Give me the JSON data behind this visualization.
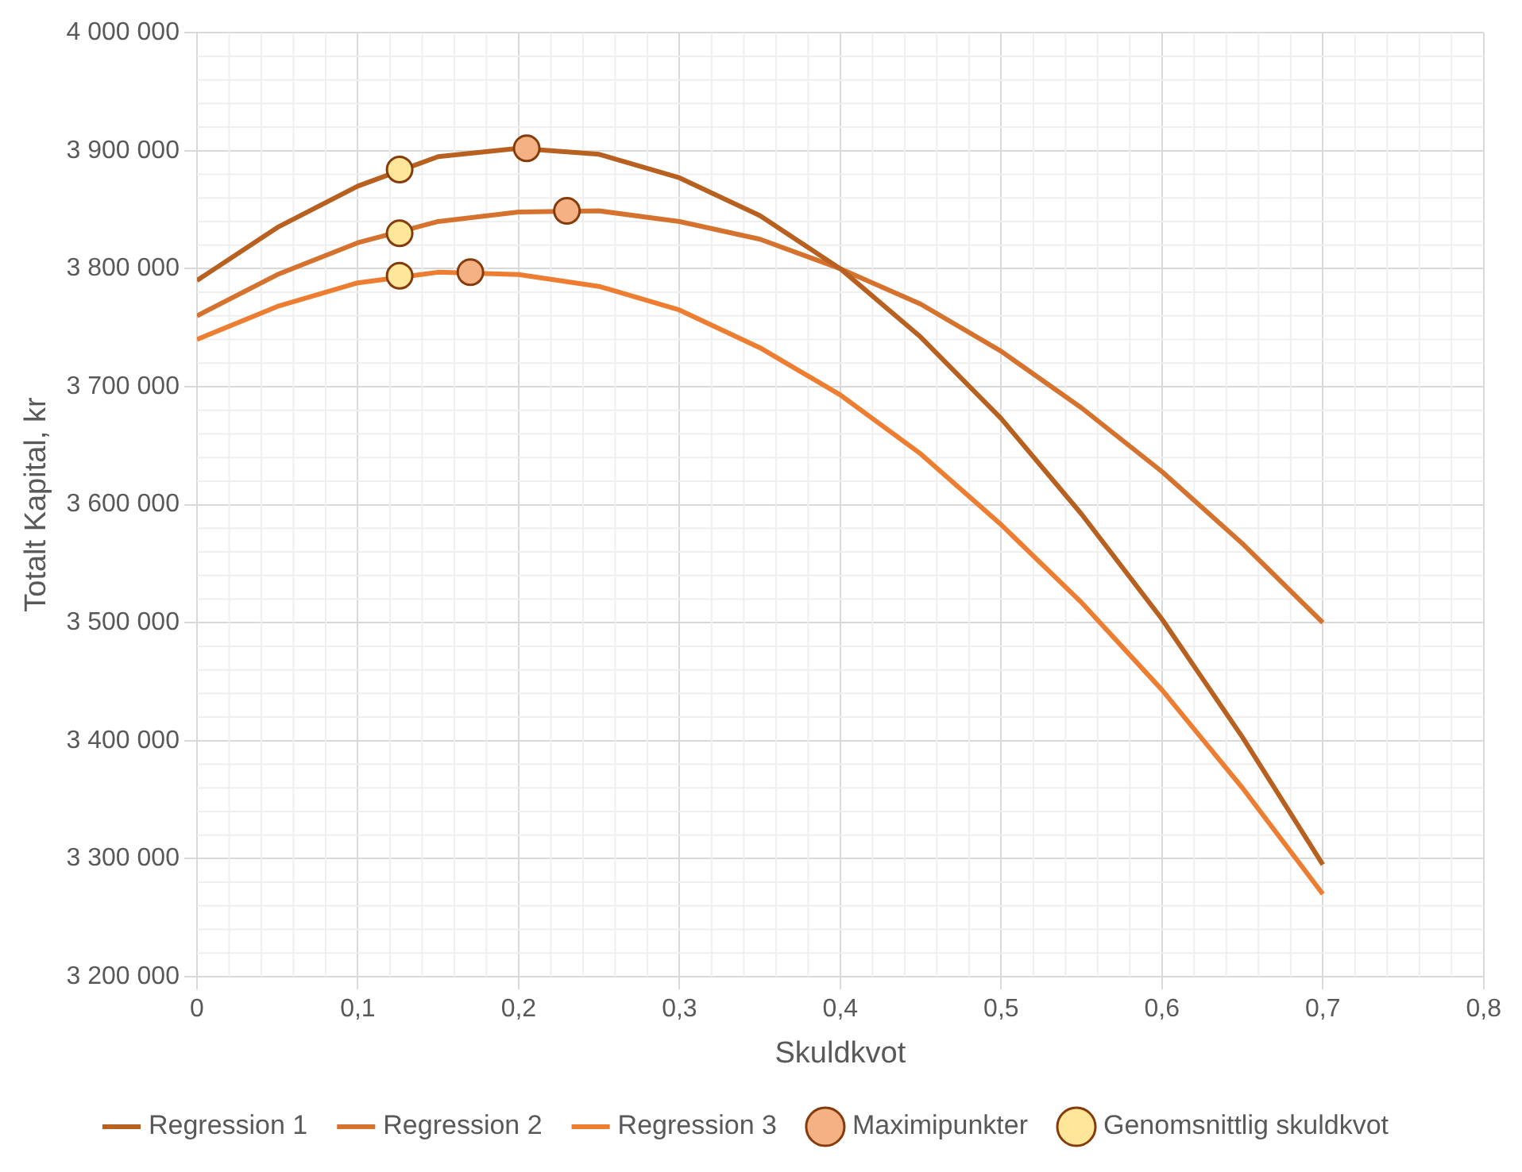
{
  "chart_data": {
    "type": "line",
    "xlabel": "Skuldkvot",
    "ylabel": "Totalt Kapital, kr",
    "x": [
      0,
      0.05,
      0.1,
      0.15,
      0.2,
      0.25,
      0.3,
      0.35,
      0.4,
      0.45,
      0.5,
      0.55,
      0.6,
      0.65,
      0.7
    ],
    "series": [
      {
        "name": "Regression 1",
        "color": "#b8601f",
        "values": [
          3790000,
          3835000,
          3870000,
          3895000,
          3902000,
          3897000,
          3877000,
          3845000,
          3800000,
          3742000,
          3673000,
          3592000,
          3503000,
          3403000,
          3295000
        ]
      },
      {
        "name": "Regression 2",
        "color": "#d4722e",
        "values": [
          3760000,
          3795000,
          3822000,
          3840000,
          3848000,
          3849000,
          3840000,
          3825000,
          3800000,
          3770000,
          3730000,
          3682000,
          3628000,
          3567000,
          3500000
        ]
      },
      {
        "name": "Regression 3",
        "color": "#ed7d31",
        "values": [
          3740000,
          3768000,
          3788000,
          3797000,
          3795000,
          3785000,
          3765000,
          3733000,
          3693000,
          3643000,
          3583000,
          3517000,
          3443000,
          3360000,
          3270000
        ]
      },
      {
        "name": "Maximipunkter",
        "type": "scatter",
        "marker": "circle",
        "color": "#f4b183",
        "x": [
          0.205,
          0.23,
          0.17
        ],
        "values": [
          3902000,
          3849000,
          3797000
        ]
      },
      {
        "name": "Genomsnittlig skuldkvot",
        "type": "scatter",
        "marker": "circle",
        "color": "#ffe699",
        "x": [
          0.126,
          0.126,
          0.126
        ],
        "values": [
          3884000,
          3830000,
          3794000
        ]
      }
    ],
    "xlim": [
      0,
      0.8
    ],
    "xticks": [
      {
        "value": 0,
        "label": "0"
      },
      {
        "value": 0.1,
        "label": "0,1"
      },
      {
        "value": 0.2,
        "label": "0,2"
      },
      {
        "value": 0.3,
        "label": "0,3"
      },
      {
        "value": 0.4,
        "label": "0,4"
      },
      {
        "value": 0.5,
        "label": "0,5"
      },
      {
        "value": 0.6,
        "label": "0,6"
      },
      {
        "value": 0.7,
        "label": "0,7"
      },
      {
        "value": 0.8,
        "label": "0,8"
      }
    ],
    "ylim": [
      3200000,
      4000000
    ],
    "yticks": [
      {
        "value": 3200000,
        "label": "3 200 000"
      },
      {
        "value": 3300000,
        "label": "3 300 000"
      },
      {
        "value": 3400000,
        "label": "3 400 000"
      },
      {
        "value": 3500000,
        "label": "3 500 000"
      },
      {
        "value": 3600000,
        "label": "3 600 000"
      },
      {
        "value": 3700000,
        "label": "3 700 000"
      },
      {
        "value": 3800000,
        "label": "3 800 000"
      },
      {
        "value": 3900000,
        "label": "3 900 000"
      },
      {
        "value": 4000000,
        "label": "4 000 000"
      }
    ],
    "grid": true,
    "legend": "bottom",
    "marker": "none"
  }
}
